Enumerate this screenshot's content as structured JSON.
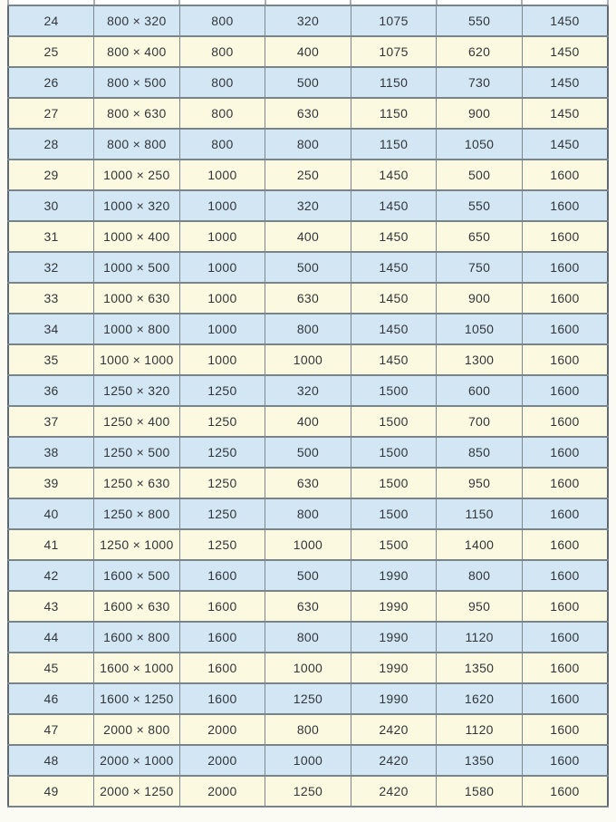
{
  "document": {
    "description_visible": false
  },
  "colors": {
    "row_blue": "#d3e6f4",
    "row_cream": "#fcf9e1",
    "cell_border": "#7d878e",
    "outer_border": "#5f686f",
    "text": "#32363a",
    "page_background": "#fbfbf4"
  },
  "table": {
    "column_count": 7,
    "first_row_shade": "blue",
    "rows": [
      [
        "24",
        "800 × 320",
        "800",
        "320",
        "1075",
        "550",
        "1450"
      ],
      [
        "25",
        "800 × 400",
        "800",
        "400",
        "1075",
        "620",
        "1450"
      ],
      [
        "26",
        "800 × 500",
        "800",
        "500",
        "1150",
        "730",
        "1450"
      ],
      [
        "27",
        "800 × 630",
        "800",
        "630",
        "1150",
        "900",
        "1450"
      ],
      [
        "28",
        "800 × 800",
        "800",
        "800",
        "1150",
        "1050",
        "1450"
      ],
      [
        "29",
        "1000 × 250",
        "1000",
        "250",
        "1450",
        "500",
        "1600"
      ],
      [
        "30",
        "1000 × 320",
        "1000",
        "320",
        "1450",
        "550",
        "1600"
      ],
      [
        "31",
        "1000 × 400",
        "1000",
        "400",
        "1450",
        "650",
        "1600"
      ],
      [
        "32",
        "1000 × 500",
        "1000",
        "500",
        "1450",
        "750",
        "1600"
      ],
      [
        "33",
        "1000 × 630",
        "1000",
        "630",
        "1450",
        "900",
        "1600"
      ],
      [
        "34",
        "1000 × 800",
        "1000",
        "800",
        "1450",
        "1050",
        "1600"
      ],
      [
        "35",
        "1000 × 1000",
        "1000",
        "1000",
        "1450",
        "1300",
        "1600"
      ],
      [
        "36",
        "1250 × 320",
        "1250",
        "320",
        "1500",
        "600",
        "1600"
      ],
      [
        "37",
        "1250 × 400",
        "1250",
        "400",
        "1500",
        "700",
        "1600"
      ],
      [
        "38",
        "1250 × 500",
        "1250",
        "500",
        "1500",
        "850",
        "1600"
      ],
      [
        "39",
        "1250 × 630",
        "1250",
        "630",
        "1500",
        "950",
        "1600"
      ],
      [
        "40",
        "1250 × 800",
        "1250",
        "800",
        "1500",
        "1150",
        "1600"
      ],
      [
        "41",
        "1250 × 1000",
        "1250",
        "1000",
        "1500",
        "1400",
        "1600"
      ],
      [
        "42",
        "1600 × 500",
        "1600",
        "500",
        "1990",
        "800",
        "1600"
      ],
      [
        "43",
        "1600 × 630",
        "1600",
        "630",
        "1990",
        "950",
        "1600"
      ],
      [
        "44",
        "1600 × 800",
        "1600",
        "800",
        "1990",
        "1120",
        "1600"
      ],
      [
        "45",
        "1600 × 1000",
        "1600",
        "1000",
        "1990",
        "1350",
        "1600"
      ],
      [
        "46",
        "1600 × 1250",
        "1600",
        "1250",
        "1990",
        "1620",
        "1600"
      ],
      [
        "47",
        "2000 × 800",
        "2000",
        "800",
        "2420",
        "1120",
        "1600"
      ],
      [
        "48",
        "2000 × 1000",
        "2000",
        "1000",
        "2420",
        "1350",
        "1600"
      ],
      [
        "49",
        "2000 × 1250",
        "2000",
        "1250",
        "2420",
        "1580",
        "1600"
      ]
    ]
  }
}
